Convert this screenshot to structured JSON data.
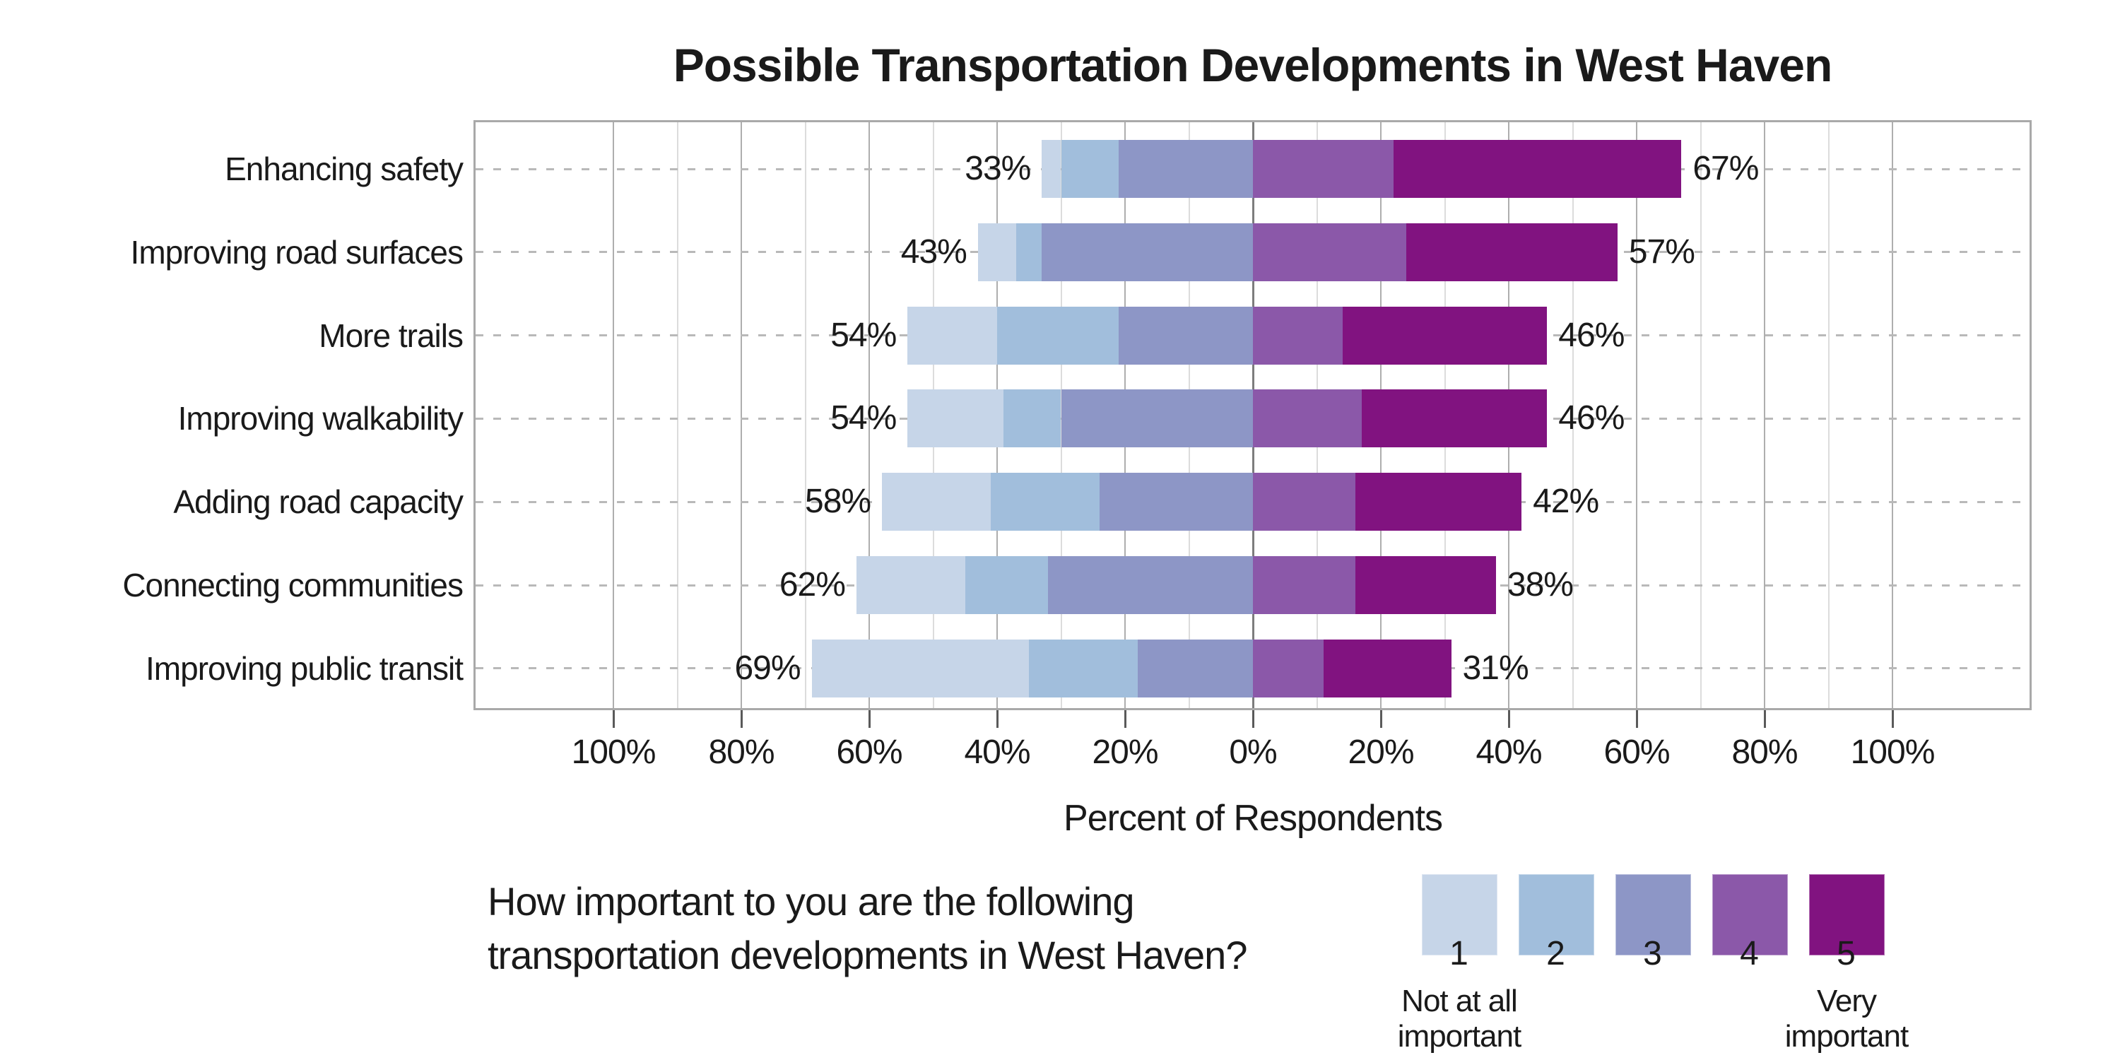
{
  "title": "Possible Transportation Developments in West Haven",
  "chart_data": {
    "type": "bar",
    "variant": "diverging-stacked-likert",
    "orientation": "horizontal",
    "title": "Possible Transportation Developments in West Haven",
    "xlabel": "Percent of Respondents",
    "axis_split": "ratings 1-3 plotted left of zero, ratings 4-5 plotted right of zero",
    "x_tick_positions": [
      -100,
      -80,
      -60,
      -40,
      -20,
      0,
      20,
      40,
      60,
      80,
      100
    ],
    "x_tick_labels": [
      "100%",
      "80%",
      "60%",
      "40%",
      "20%",
      "0%",
      "20%",
      "40%",
      "60%",
      "80%",
      "100%"
    ],
    "grid": {
      "minor_step_pct": 10,
      "major_step_pct": 20,
      "row_guides": "dashed"
    },
    "levels": [
      {
        "value": "1",
        "label": "Not at all important",
        "color": "#c6d5e8"
      },
      {
        "value": "2",
        "label": "2",
        "color": "#a1bedc"
      },
      {
        "value": "3",
        "label": "3",
        "color": "#8d96c6"
      },
      {
        "value": "4",
        "label": "4",
        "color": "#8b58a9"
      },
      {
        "value": "5",
        "label": "Very important",
        "color": "#811380"
      }
    ],
    "categories": [
      "Enhancing safety",
      "Improving road surfaces",
      "More trails",
      "Improving walkability",
      "Adding road capacity",
      "Connecting communities",
      "Improving public transit"
    ],
    "rows": [
      {
        "category": "Enhancing safety",
        "values": [
          3,
          9,
          21,
          22,
          45
        ],
        "left_total_label": "33%",
        "right_total_label": "67%"
      },
      {
        "category": "Improving road surfaces",
        "values": [
          6,
          4,
          33,
          24,
          33
        ],
        "left_total_label": "43%",
        "right_total_label": "57%"
      },
      {
        "category": "More trails",
        "values": [
          14,
          19,
          21,
          14,
          32
        ],
        "left_total_label": "54%",
        "right_total_label": "46%"
      },
      {
        "category": "Improving walkability",
        "values": [
          15,
          9,
          30,
          17,
          29
        ],
        "left_total_label": "54%",
        "right_total_label": "46%"
      },
      {
        "category": "Adding road capacity",
        "values": [
          17,
          17,
          24,
          16,
          26
        ],
        "left_total_label": "58%",
        "right_total_label": "42%"
      },
      {
        "category": "Connecting communities",
        "values": [
          17,
          13,
          32,
          16,
          22
        ],
        "left_total_label": "62%",
        "right_total_label": "38%"
      },
      {
        "category": "Improving public transit",
        "values": [
          34,
          17,
          18,
          11,
          20
        ],
        "left_total_label": "69%",
        "right_total_label": "31%"
      }
    ]
  },
  "question": {
    "line1": "How important to you are the following",
    "line2": "transportation developments in West Haven?"
  },
  "legend": {
    "numbers": [
      "1",
      "2",
      "3",
      "4",
      "5"
    ],
    "first_caption_line1": "Not at all",
    "first_caption_line2": "important",
    "last_caption_line1": "Very",
    "last_caption_line2": "important"
  },
  "colors": {
    "level1": "#c6d5e8",
    "level2": "#a1bedc",
    "level3": "#8d96c6",
    "level4": "#8b58a9",
    "level5": "#811380",
    "zero_line": "#7d7d7d",
    "major_grid": "#aeaeae",
    "minor_grid": "#dcdcdc",
    "frame": "#a9a9a9",
    "row_guide": "#b9b9b9",
    "text": "#1a1a1a"
  }
}
